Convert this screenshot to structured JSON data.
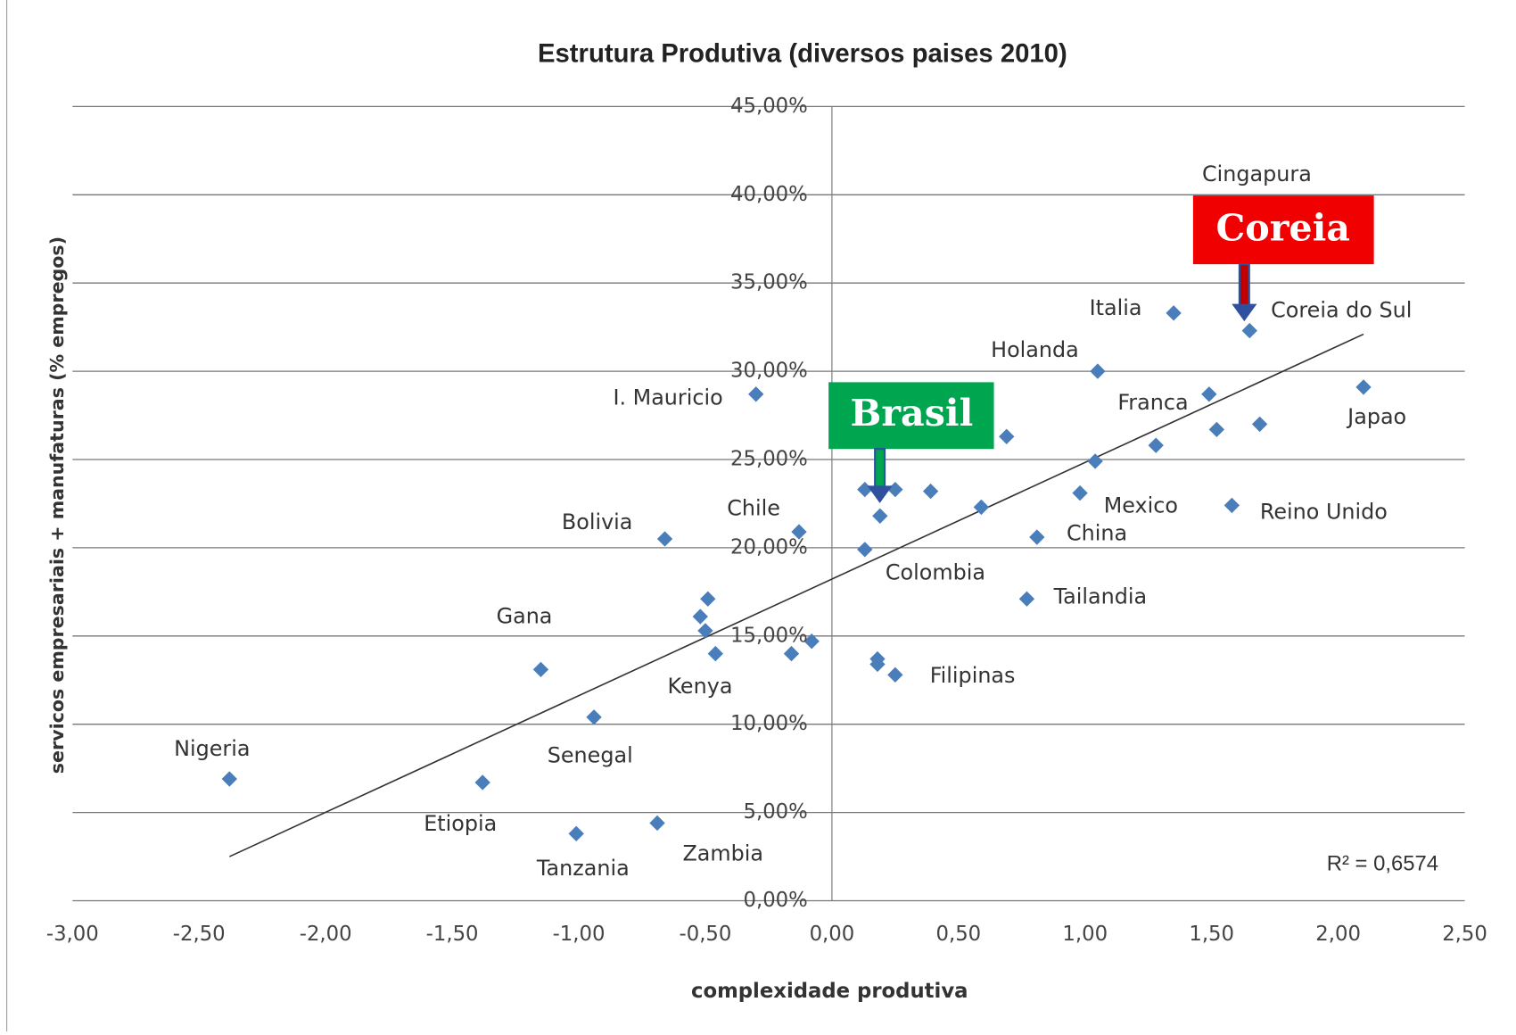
{
  "chart_data": {
    "type": "scatter",
    "title": "Estrutura Produtiva (diversos paises 2010)",
    "xlabel": "complexidade produtiva",
    "ylabel": "servicos  empresariais + manufaturas (% empregos)",
    "xlim": [
      -3,
      2.5
    ],
    "ylim": [
      0,
      45
    ],
    "xticks": [
      {
        "value": -3,
        "label": "-3,00"
      },
      {
        "value": -2.5,
        "label": "-2,50"
      },
      {
        "value": -2,
        "label": "-2,00"
      },
      {
        "value": -1.5,
        "label": "-1,50"
      },
      {
        "value": -1,
        "label": "-1,00"
      },
      {
        "value": -0.5,
        "label": "-0,50"
      },
      {
        "value": 0,
        "label": "0,00"
      },
      {
        "value": 0.5,
        "label": "0,50"
      },
      {
        "value": 1,
        "label": "1,00"
      },
      {
        "value": 1.5,
        "label": "1,50"
      },
      {
        "value": 2,
        "label": "2,00"
      },
      {
        "value": 2.5,
        "label": "2,50"
      }
    ],
    "yticks": [
      {
        "value": 0,
        "label": "0,00%"
      },
      {
        "value": 5,
        "label": "5,00%"
      },
      {
        "value": 10,
        "label": "10,00%"
      },
      {
        "value": 15,
        "label": "15,00%"
      },
      {
        "value": 20,
        "label": "20,00%"
      },
      {
        "value": 25,
        "label": "25,00%"
      },
      {
        "value": 30,
        "label": "30,00%"
      },
      {
        "value": 35,
        "label": "35,00%"
      },
      {
        "value": 40,
        "label": "40,00%"
      },
      {
        "value": 45,
        "label": "45,00%"
      }
    ],
    "grid": true,
    "color": "#4a7ebb",
    "x": [
      -2.38,
      -1.38,
      -1.15,
      -0.94,
      -1.01,
      -0.69,
      -0.66,
      -0.46,
      -0.49,
      -0.52,
      -0.5,
      -0.3,
      -0.13,
      -0.16,
      -0.08,
      0.13,
      0.13,
      0.19,
      0.25,
      0.39,
      0.18,
      0.18,
      0.25,
      0.59,
      0.69,
      1.05,
      1.35,
      1.65,
      1.49,
      1.52,
      1.69,
      1.28,
      0.98,
      1.04,
      0.81,
      0.77,
      1.58,
      2.1
    ],
    "values": [
      6.9,
      6.7,
      13.1,
      10.4,
      3.8,
      4.4,
      20.5,
      14.0,
      17.1,
      16.1,
      15.3,
      28.7,
      20.9,
      14.0,
      14.7,
      19.9,
      23.3,
      21.8,
      23.3,
      23.2,
      13.7,
      13.4,
      12.8,
      22.3,
      26.3,
      30.0,
      33.3,
      32.3,
      28.7,
      26.7,
      27.0,
      25.8,
      23.1,
      24.9,
      20.6,
      17.1,
      22.4,
      29.1
    ],
    "labels": [
      "Nigeria",
      "Etiopia",
      "Gana",
      "Senegal",
      "Tanzania",
      "Zambia",
      "Bolivia",
      "Kenya",
      null,
      null,
      null,
      "I. Mauricio",
      "Chile",
      null,
      null,
      "Colombia",
      null,
      null,
      null,
      null,
      null,
      null,
      "Filipinas",
      null,
      null,
      "Holanda",
      "Italia",
      "Coreia do Sul",
      "Franca",
      null,
      null,
      null,
      "Mexico",
      null,
      "China",
      "Tailandia",
      "Reino Unido",
      "Japao"
    ],
    "trendline": {
      "x": [
        -2.38,
        2.1
      ],
      "y": [
        2.5,
        32.1
      ]
    },
    "annotations": [
      "R² = 0,6574",
      "Cingapura",
      "Coreia",
      "Brasil"
    ]
  }
}
